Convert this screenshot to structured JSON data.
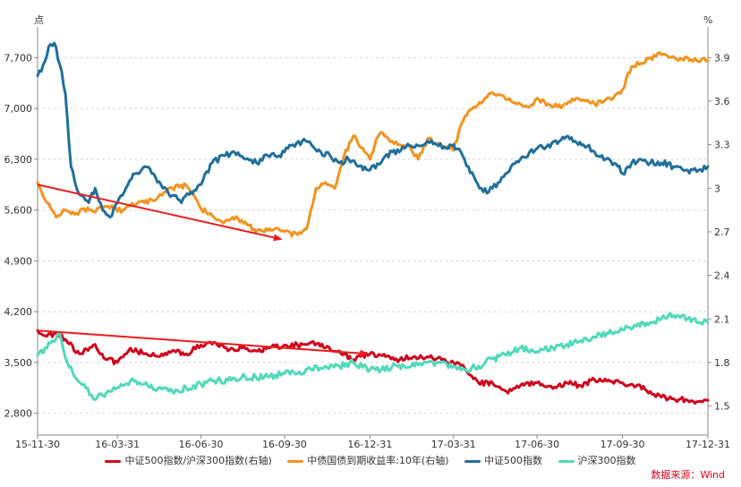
{
  "chart_data": {
    "type": "line",
    "left_unit": "点",
    "right_unit": "%",
    "x_ticks": [
      "15-11-30",
      "16-03-31",
      "16-06-30",
      "16-09-30",
      "16-12-31",
      "17-03-31",
      "17-06-30",
      "17-09-30",
      "17-12-31"
    ],
    "x_tick_index": [
      0,
      86,
      176,
      266,
      358,
      448,
      538,
      630,
      722
    ],
    "x_range_index": [
      0,
      722
    ],
    "ylim_left": [
      2500,
      8000
    ],
    "ylim_right": [
      1.3,
      4.05
    ],
    "left_ticks": [
      "2,800",
      "3,500",
      "4,200",
      "4,900",
      "5,600",
      "6,300",
      "7,000",
      "7,700"
    ],
    "left_tick_values": [
      2800,
      3500,
      4200,
      4900,
      5600,
      6300,
      7000,
      7700
    ],
    "right_ticks": [
      "1.5",
      "1.8",
      "2.1",
      "2.4",
      "2.7",
      "3",
      "3.3",
      "3.6",
      "3.9"
    ],
    "right_tick_values": [
      1.5,
      1.8,
      2.1,
      2.4,
      2.7,
      3.0,
      3.3,
      3.6,
      3.9
    ],
    "grid": "horizontal dashed",
    "legend_position": "bottom",
    "series": [
      {
        "name": "中证500指数/沪深300指数(右轴)",
        "axis": "right",
        "color": "#d0021b",
        "x": [
          0,
          10,
          20,
          30,
          45,
          60,
          75,
          86,
          100,
          115,
          130,
          145,
          160,
          176,
          190,
          205,
          220,
          235,
          250,
          266,
          280,
          295,
          310,
          325,
          340,
          358,
          375,
          390,
          405,
          420,
          435,
          448,
          460,
          475,
          490,
          505,
          520,
          538,
          555,
          570,
          585,
          600,
          615,
          630,
          645,
          660,
          672,
          685,
          700,
          710,
          722
        ],
        "y": [
          2.02,
          1.98,
          2.0,
          1.96,
          1.86,
          1.92,
          1.82,
          1.8,
          1.9,
          1.86,
          1.84,
          1.88,
          1.86,
          1.92,
          1.94,
          1.88,
          1.9,
          1.88,
          1.9,
          1.92,
          1.92,
          1.94,
          1.9,
          1.88,
          1.82,
          1.86,
          1.84,
          1.82,
          1.84,
          1.84,
          1.82,
          1.8,
          1.76,
          1.66,
          1.66,
          1.6,
          1.64,
          1.66,
          1.62,
          1.66,
          1.64,
          1.68,
          1.68,
          1.66,
          1.64,
          1.6,
          1.56,
          1.55,
          1.54,
          1.53,
          1.54
        ]
      },
      {
        "name": "中债国债到期收益率:10年(右轴)",
        "axis": "right",
        "color": "#f4921f",
        "x": [
          0,
          10,
          20,
          30,
          40,
          50,
          60,
          70,
          80,
          86,
          100,
          115,
          130,
          145,
          160,
          176,
          190,
          200,
          210,
          220,
          235,
          250,
          266,
          280,
          290,
          300,
          310,
          320,
          330,
          340,
          350,
          358,
          365,
          372,
          380,
          390,
          400,
          410,
          420,
          430,
          440,
          448,
          455,
          462,
          470,
          480,
          490,
          500,
          510,
          520,
          530,
          538,
          550,
          560,
          570,
          580,
          590,
          600,
          610,
          620,
          630,
          640,
          650,
          660,
          672,
          680,
          690,
          700,
          710,
          722
        ],
        "y": [
          3.04,
          2.9,
          2.8,
          2.85,
          2.82,
          2.86,
          2.84,
          2.86,
          2.88,
          2.84,
          2.88,
          2.9,
          2.94,
          3.0,
          3.02,
          2.86,
          2.8,
          2.76,
          2.8,
          2.78,
          2.7,
          2.72,
          2.7,
          2.68,
          2.72,
          3.0,
          3.04,
          3.0,
          3.22,
          3.36,
          3.28,
          3.2,
          3.34,
          3.38,
          3.32,
          3.3,
          3.3,
          3.2,
          3.34,
          3.3,
          3.28,
          3.26,
          3.42,
          3.5,
          3.56,
          3.6,
          3.66,
          3.64,
          3.6,
          3.58,
          3.56,
          3.62,
          3.58,
          3.56,
          3.58,
          3.62,
          3.6,
          3.58,
          3.6,
          3.62,
          3.68,
          3.84,
          3.86,
          3.9,
          3.92,
          3.9,
          3.88,
          3.9,
          3.88,
          3.88
        ]
      },
      {
        "name": "中证500指数",
        "axis": "left",
        "color": "#1f6f9b",
        "x": [
          0,
          6,
          12,
          18,
          24,
          30,
          36,
          42,
          48,
          55,
          62,
          70,
          78,
          86,
          95,
          105,
          115,
          125,
          135,
          145,
          155,
          165,
          176,
          188,
          200,
          212,
          224,
          236,
          248,
          260,
          266,
          275,
          285,
          295,
          305,
          315,
          325,
          335,
          345,
          358,
          370,
          382,
          395,
          408,
          420,
          430,
          440,
          448,
          456,
          464,
          472,
          480,
          490,
          500,
          510,
          520,
          530,
          538,
          550,
          562,
          575,
          588,
          600,
          612,
          625,
          630,
          640,
          650,
          660,
          672,
          685,
          700,
          712,
          722
        ],
        "y": [
          7450,
          7600,
          7850,
          7900,
          7600,
          7200,
          6200,
          5900,
          5800,
          5700,
          5900,
          5600,
          5500,
          5700,
          5900,
          6100,
          6200,
          6100,
          5900,
          5800,
          5700,
          5850,
          5950,
          6250,
          6350,
          6400,
          6300,
          6250,
          6350,
          6350,
          6400,
          6500,
          6550,
          6500,
          6400,
          6350,
          6250,
          6300,
          6200,
          6150,
          6250,
          6400,
          6450,
          6500,
          6550,
          6500,
          6450,
          6500,
          6400,
          6200,
          6000,
          5850,
          5900,
          6050,
          6200,
          6300,
          6400,
          6450,
          6500,
          6550,
          6600,
          6500,
          6400,
          6300,
          6200,
          6100,
          6250,
          6300,
          6250,
          6250,
          6200,
          6150,
          6150,
          6200
        ]
      },
      {
        "name": "沪深300指数",
        "axis": "left",
        "color": "#4fd9b9",
        "x": [
          0,
          8,
          16,
          24,
          32,
          40,
          50,
          60,
          70,
          78,
          86,
          100,
          115,
          130,
          145,
          160,
          176,
          190,
          205,
          220,
          235,
          250,
          266,
          280,
          295,
          310,
          325,
          340,
          358,
          370,
          382,
          395,
          408,
          420,
          435,
          448,
          460,
          475,
          490,
          505,
          520,
          538,
          555,
          570,
          585,
          600,
          615,
          630,
          645,
          660,
          672,
          685,
          700,
          712,
          722
        ],
        "y": [
          3600,
          3700,
          3800,
          3900,
          3500,
          3300,
          3200,
          3000,
          3050,
          3100,
          3150,
          3250,
          3200,
          3150,
          3100,
          3150,
          3200,
          3250,
          3250,
          3300,
          3300,
          3300,
          3350,
          3350,
          3400,
          3450,
          3450,
          3500,
          3400,
          3400,
          3450,
          3450,
          3500,
          3500,
          3500,
          3450,
          3400,
          3450,
          3550,
          3600,
          3700,
          3650,
          3700,
          3750,
          3800,
          3850,
          3900,
          3950,
          4000,
          4050,
          4100,
          4150,
          4100,
          4050,
          4050
        ]
      }
    ],
    "annotations": [
      {
        "type": "arrow",
        "axis": "left",
        "from_index": 0,
        "from_value": 5950,
        "to_index": 262,
        "to_value": 5200,
        "color": "#ee1c1c"
      },
      {
        "type": "arrow",
        "axis": "right",
        "from_index": 0,
        "from_value": 2.02,
        "to_index": 355,
        "to_value": 1.86,
        "color": "#ee1c1c"
      }
    ]
  },
  "legend": {
    "items": [
      {
        "label": "中证500指数/沪深300指数(右轴)",
        "color": "#d0021b"
      },
      {
        "label": "中债国债到期收益率:10年(右轴)",
        "color": "#f4921f"
      },
      {
        "label": "中证500指数",
        "color": "#1f6f9b"
      },
      {
        "label": "沪深300指数",
        "color": "#4fd9b9"
      }
    ]
  },
  "source": "数据来源：Wind"
}
